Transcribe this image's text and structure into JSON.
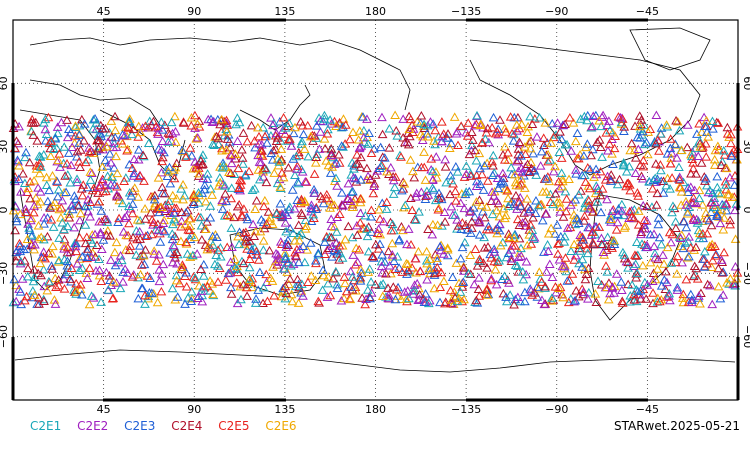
{
  "map": {
    "lon_ticks": [
      "45",
      "90",
      "135",
      "180",
      "−135",
      "−90",
      "−45"
    ],
    "lat_ticks": [
      "60",
      "30",
      "0",
      "−30",
      "−60"
    ],
    "lon_range": [
      0,
      360
    ],
    "lat_range": [
      -90,
      90
    ],
    "marker_band_lat": [
      -45,
      45
    ],
    "marker_shape": "triangle-outline",
    "grid": "dotted"
  },
  "legend": [
    {
      "label": "C2E1",
      "color": "#1aa7b8"
    },
    {
      "label": "C2E2",
      "color": "#a020c0"
    },
    {
      "label": "C2E3",
      "color": "#1f5fd6"
    },
    {
      "label": "C2E4",
      "color": "#b0102a"
    },
    {
      "label": "C2E5",
      "color": "#e8231e"
    },
    {
      "label": "C2E6",
      "color": "#f0a800"
    }
  ],
  "stamp": "STARwet.2025-05-21"
}
